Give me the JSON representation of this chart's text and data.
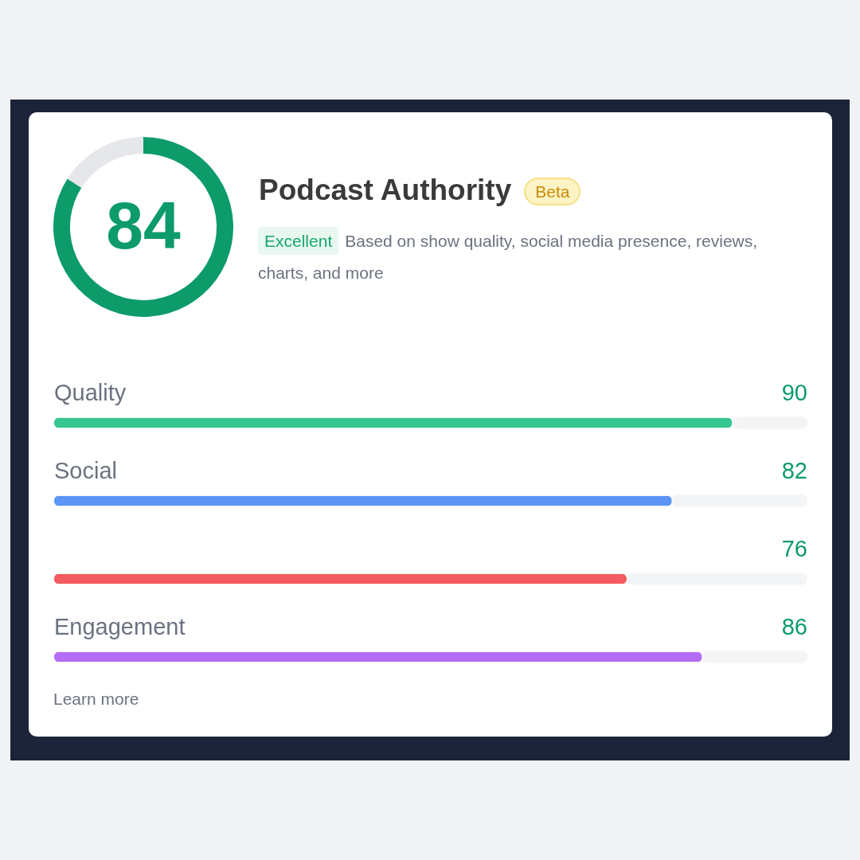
{
  "chart_data": [
    {
      "type": "donut",
      "title": "Podcast Authority",
      "categories": [
        null,
        null
      ],
      "values": [
        84,
        16
      ],
      "colors": [
        "#0d9b6a",
        "#e5e7eb"
      ],
      "value_labels": [
        "84",
        null
      ],
      "annotations": [
        "Beta",
        "Excellent",
        "Based on show quality, social media presence, reviews, charts, and more"
      ]
    },
    {
      "type": "bar",
      "orientation": "horizontal",
      "categories": [
        "Quality",
        "Social",
        null,
        "Engagement"
      ],
      "values": [
        90,
        82,
        76,
        86
      ],
      "colors": [
        "#34c78f",
        "#5b95f5",
        "#f25b5f",
        "#b36ef5"
      ],
      "xlim": [
        0,
        100
      ],
      "tick_labels": false,
      "data_labels": true,
      "annotations": [
        "Learn more"
      ]
    }
  ]
}
